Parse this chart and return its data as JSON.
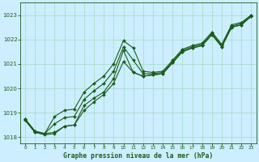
{
  "xlabel": "Graphe pression niveau de la mer (hPa)",
  "x": [
    0,
    1,
    2,
    3,
    4,
    5,
    6,
    7,
    8,
    9,
    10,
    11,
    12,
    13,
    14,
    15,
    16,
    17,
    18,
    19,
    20,
    21,
    22,
    23
  ],
  "series": [
    [
      1018.7,
      1018.2,
      1018.1,
      1018.15,
      1018.45,
      1018.5,
      1019.3,
      1019.6,
      1019.85,
      1020.4,
      1021.55,
      1020.65,
      1020.5,
      1020.55,
      1020.6,
      1021.05,
      1021.5,
      1021.65,
      1021.75,
      1022.2,
      1021.7,
      1022.5,
      1022.6,
      1022.95
    ],
    [
      1018.7,
      1018.2,
      1018.15,
      1018.2,
      1018.45,
      1018.5,
      1019.1,
      1019.45,
      1019.75,
      1020.2,
      1021.1,
      1020.65,
      1020.5,
      1020.55,
      1020.6,
      1021.05,
      1021.5,
      1021.65,
      1021.75,
      1022.2,
      1021.7,
      1022.5,
      1022.6,
      1022.95
    ],
    [
      1018.75,
      1018.25,
      1018.15,
      1018.55,
      1018.8,
      1018.85,
      1019.55,
      1019.9,
      1020.2,
      1020.7,
      1021.7,
      1021.15,
      1020.6,
      1020.6,
      1020.65,
      1021.1,
      1021.55,
      1021.7,
      1021.8,
      1022.25,
      1021.75,
      1022.55,
      1022.65,
      1023.0
    ],
    [
      1018.75,
      1018.25,
      1018.15,
      1018.85,
      1019.1,
      1019.15,
      1019.85,
      1020.2,
      1020.5,
      1021.0,
      1021.95,
      1021.65,
      1020.7,
      1020.65,
      1020.7,
      1021.15,
      1021.6,
      1021.75,
      1021.85,
      1022.3,
      1021.8,
      1022.6,
      1022.7,
      1023.0
    ]
  ],
  "line_color": "#1a5c1a",
  "marker": "D",
  "markersize": 2.0,
  "linewidth": 0.8,
  "bg_color": "#cceeff",
  "grid_color": "#aaddcc",
  "tick_color": "#1a5c1a",
  "label_color": "#1a5c1a",
  "ylim": [
    1017.75,
    1023.5
  ],
  "yticks": [
    1018,
    1019,
    1020,
    1021,
    1022,
    1023
  ],
  "xticks": [
    0,
    1,
    2,
    3,
    4,
    5,
    6,
    7,
    8,
    9,
    10,
    11,
    12,
    13,
    14,
    15,
    16,
    17,
    18,
    19,
    20,
    21,
    22,
    23
  ]
}
